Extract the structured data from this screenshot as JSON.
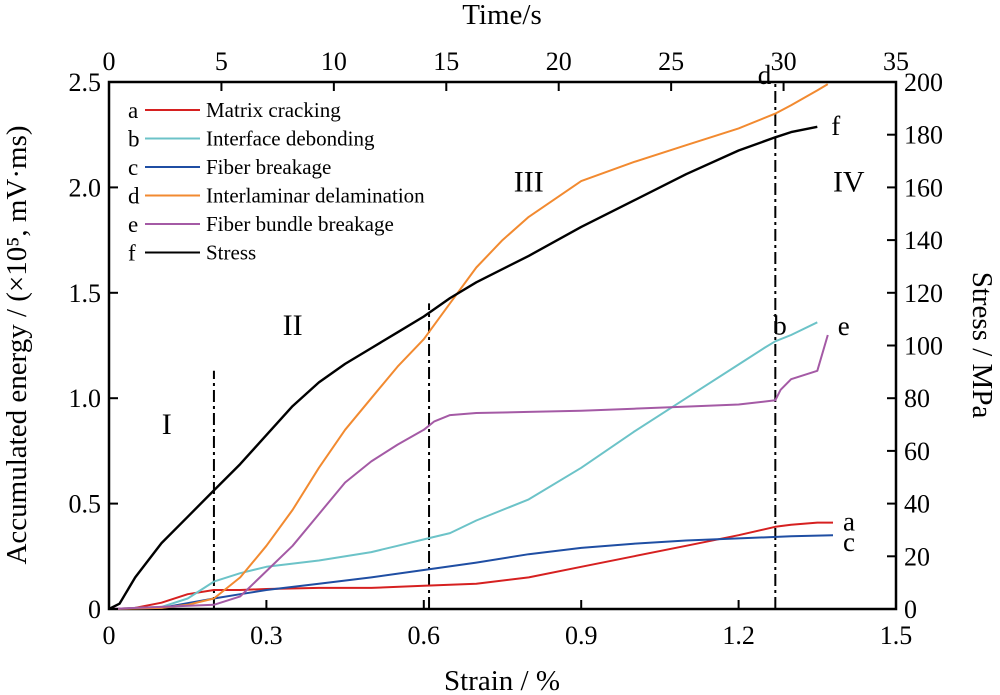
{
  "chart_data": {
    "type": "line",
    "xlabel": "Strain / %",
    "x2label": "Time/s",
    "ylabel": "Accumulated energy / (×10⁵, mV·ms)",
    "y2label": "Stress / MPa",
    "xlim": [
      0,
      1.5
    ],
    "x2lim": [
      0,
      35
    ],
    "ylim": [
      0,
      2.5
    ],
    "y2lim": [
      0,
      200
    ],
    "xticks": [
      "0",
      "0.3",
      "0.6",
      "0.9",
      "1.2",
      "1.5"
    ],
    "x2ticks": [
      "0",
      "5",
      "10",
      "15",
      "20",
      "25",
      "30",
      "35"
    ],
    "yticks": [
      "0",
      "0.5",
      "1.0",
      "1.5",
      "2.0",
      "2.5"
    ],
    "y2ticks": [
      "0",
      "20",
      "40",
      "60",
      "80",
      "100",
      "120",
      "140",
      "160",
      "180",
      "200"
    ],
    "grid": false,
    "legend_position": "top-left",
    "stage_lines": [
      0.2,
      0.61,
      1.27
    ],
    "stages": [
      {
        "label": "I",
        "x": 0.11,
        "y": 0.83
      },
      {
        "label": "II",
        "x": 0.35,
        "y": 1.3
      },
      {
        "label": "III",
        "x": 0.8,
        "y": 1.98
      },
      {
        "label": "IV",
        "x": 1.41,
        "y": 1.98
      }
    ],
    "series": [
      {
        "key": "a",
        "name": "Matrix cracking",
        "color": "#d62020",
        "axis": "left",
        "points": [
          [
            0,
            0
          ],
          [
            0.05,
            0.005
          ],
          [
            0.1,
            0.03
          ],
          [
            0.15,
            0.07
          ],
          [
            0.2,
            0.09
          ],
          [
            0.25,
            0.09
          ],
          [
            0.3,
            0.095
          ],
          [
            0.4,
            0.1
          ],
          [
            0.5,
            0.1
          ],
          [
            0.6,
            0.11
          ],
          [
            0.7,
            0.12
          ],
          [
            0.8,
            0.15
          ],
          [
            0.9,
            0.2
          ],
          [
            1.0,
            0.25
          ],
          [
            1.1,
            0.3
          ],
          [
            1.2,
            0.35
          ],
          [
            1.27,
            0.39
          ],
          [
            1.3,
            0.4
          ],
          [
            1.35,
            0.41
          ],
          [
            1.38,
            0.41
          ]
        ]
      },
      {
        "key": "b",
        "name": "Interface debonding",
        "color": "#6cc3c8",
        "axis": "left",
        "points": [
          [
            0,
            0
          ],
          [
            0.1,
            0.01
          ],
          [
            0.15,
            0.05
          ],
          [
            0.2,
            0.13
          ],
          [
            0.25,
            0.17
          ],
          [
            0.3,
            0.2
          ],
          [
            0.4,
            0.23
          ],
          [
            0.5,
            0.27
          ],
          [
            0.55,
            0.3
          ],
          [
            0.6,
            0.33
          ],
          [
            0.65,
            0.36
          ],
          [
            0.7,
            0.42
          ],
          [
            0.8,
            0.52
          ],
          [
            0.9,
            0.67
          ],
          [
            1.0,
            0.84
          ],
          [
            1.1,
            1.0
          ],
          [
            1.2,
            1.16
          ],
          [
            1.25,
            1.24
          ],
          [
            1.27,
            1.27
          ],
          [
            1.3,
            1.3
          ],
          [
            1.35,
            1.36
          ]
        ]
      },
      {
        "key": "c",
        "name": "Fiber breakage",
        "color": "#1f4ea3",
        "axis": "left",
        "points": [
          [
            0,
            0
          ],
          [
            0.1,
            0.005
          ],
          [
            0.2,
            0.05
          ],
          [
            0.25,
            0.07
          ],
          [
            0.3,
            0.09
          ],
          [
            0.4,
            0.12
          ],
          [
            0.5,
            0.15
          ],
          [
            0.6,
            0.185
          ],
          [
            0.7,
            0.22
          ],
          [
            0.8,
            0.26
          ],
          [
            0.9,
            0.29
          ],
          [
            1.0,
            0.31
          ],
          [
            1.1,
            0.325
          ],
          [
            1.2,
            0.335
          ],
          [
            1.3,
            0.345
          ],
          [
            1.38,
            0.35
          ]
        ]
      },
      {
        "key": "d",
        "name": "Interlaminar delamination",
        "color": "#f28a30",
        "axis": "left",
        "points": [
          [
            0,
            0
          ],
          [
            0.1,
            0.005
          ],
          [
            0.15,
            0.02
          ],
          [
            0.2,
            0.05
          ],
          [
            0.25,
            0.15
          ],
          [
            0.3,
            0.3
          ],
          [
            0.35,
            0.47
          ],
          [
            0.4,
            0.67
          ],
          [
            0.45,
            0.85
          ],
          [
            0.5,
            1.0
          ],
          [
            0.55,
            1.15
          ],
          [
            0.6,
            1.28
          ],
          [
            0.65,
            1.45
          ],
          [
            0.7,
            1.62
          ],
          [
            0.75,
            1.75
          ],
          [
            0.8,
            1.86
          ],
          [
            0.9,
            2.03
          ],
          [
            1.0,
            2.12
          ],
          [
            1.1,
            2.2
          ],
          [
            1.2,
            2.28
          ],
          [
            1.27,
            2.35
          ],
          [
            1.3,
            2.39
          ],
          [
            1.35,
            2.46
          ],
          [
            1.37,
            2.49
          ]
        ]
      },
      {
        "key": "e",
        "name": "Fiber bundle breakage",
        "color": "#a45aa5",
        "axis": "left",
        "points": [
          [
            0,
            0
          ],
          [
            0.2,
            0.02
          ],
          [
            0.25,
            0.06
          ],
          [
            0.3,
            0.18
          ],
          [
            0.35,
            0.3
          ],
          [
            0.4,
            0.45
          ],
          [
            0.45,
            0.6
          ],
          [
            0.5,
            0.7
          ],
          [
            0.55,
            0.78
          ],
          [
            0.6,
            0.85
          ],
          [
            0.62,
            0.89
          ],
          [
            0.65,
            0.92
          ],
          [
            0.7,
            0.93
          ],
          [
            0.8,
            0.935
          ],
          [
            0.9,
            0.94
          ],
          [
            1.0,
            0.95
          ],
          [
            1.1,
            0.96
          ],
          [
            1.2,
            0.97
          ],
          [
            1.27,
            0.99
          ],
          [
            1.28,
            1.04
          ],
          [
            1.3,
            1.09
          ],
          [
            1.35,
            1.13
          ],
          [
            1.37,
            1.3
          ]
        ]
      },
      {
        "key": "f",
        "name": "Stress",
        "color": "#000000",
        "axis": "right",
        "points": [
          [
            0,
            0
          ],
          [
            0.02,
            2
          ],
          [
            0.05,
            12
          ],
          [
            0.1,
            25
          ],
          [
            0.15,
            35
          ],
          [
            0.2,
            45
          ],
          [
            0.25,
            55
          ],
          [
            0.3,
            66
          ],
          [
            0.35,
            77
          ],
          [
            0.4,
            86
          ],
          [
            0.45,
            93
          ],
          [
            0.5,
            99
          ],
          [
            0.55,
            105
          ],
          [
            0.6,
            111
          ],
          [
            0.65,
            118
          ],
          [
            0.7,
            124
          ],
          [
            0.8,
            134
          ],
          [
            0.9,
            145
          ],
          [
            1.0,
            155
          ],
          [
            1.1,
            165
          ],
          [
            1.2,
            174
          ],
          [
            1.27,
            179
          ],
          [
            1.3,
            181
          ],
          [
            1.35,
            183
          ]
        ]
      }
    ]
  }
}
